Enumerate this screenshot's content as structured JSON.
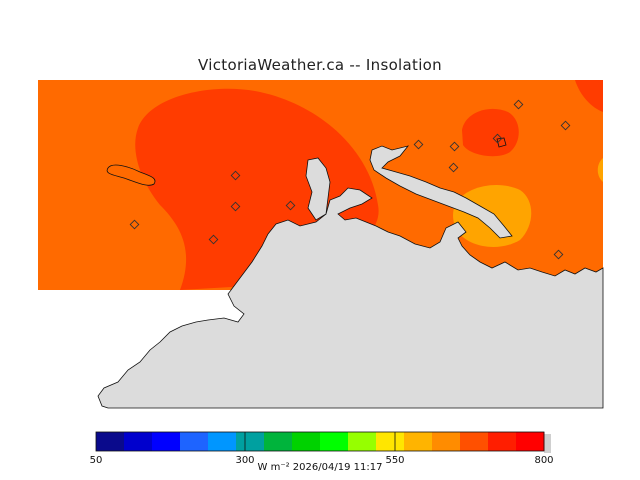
{
  "title": "VictoriaWeather.ca -- Insolation",
  "colors": {
    "land": "#dcdcdc",
    "contour_primary": "#ff6a00",
    "contour_high": "#ff3c00",
    "contour_low": "#ffa400"
  },
  "colorbar": {
    "min_label": "50",
    "mid1_label": "300",
    "mid2_label": "550",
    "max_label": "800",
    "colors": [
      "#0a0a8c",
      "#0000cd",
      "#0000ff",
      "#1e64ff",
      "#0096ff",
      "#00a0a0",
      "#00b43c",
      "#00d200",
      "#00ff00",
      "#96ff00",
      "#ffe600",
      "#ffb400",
      "#ff8c00",
      "#ff5000",
      "#ff1e00",
      "#ff0000"
    ]
  },
  "units": "W m⁻²  2026/04/19 11:17",
  "stations_count_label": ""
}
